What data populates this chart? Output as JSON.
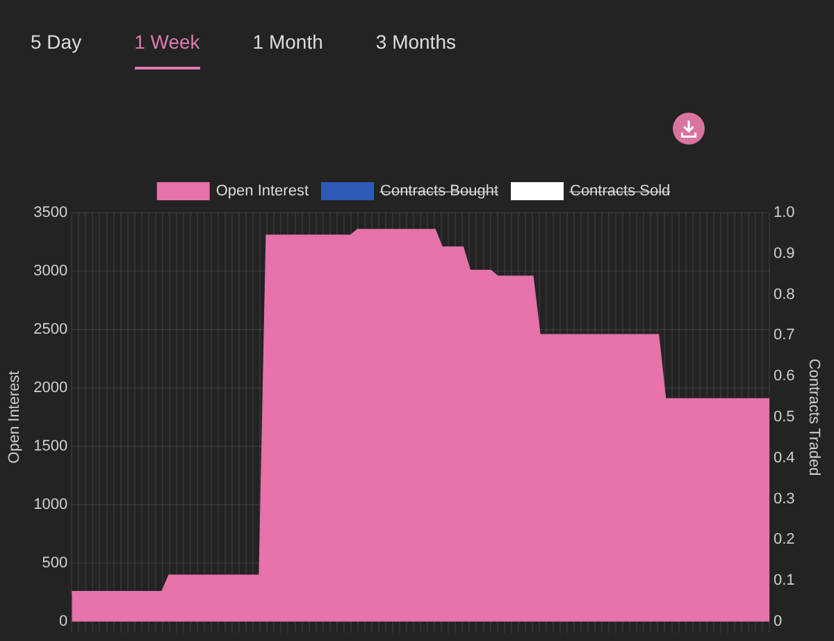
{
  "chart_data": {
    "type": "area",
    "ylabel": "Open Interest",
    "y2label": "Contracts Traded",
    "annotations": [
      "5 Day",
      "1 Week",
      "1 Month",
      "3 Months"
    ],
    "categories": [
      null,
      null,
      null,
      null,
      null,
      null,
      null,
      null,
      null,
      null,
      null,
      null,
      null,
      null,
      null,
      null,
      null,
      null,
      null,
      null,
      null,
      null,
      null,
      null,
      null,
      null,
      null,
      null,
      null,
      null,
      null,
      null,
      null,
      null,
      null,
      null,
      null,
      null,
      null,
      null,
      null,
      null,
      null,
      null,
      null,
      null,
      null,
      null,
      null,
      null,
      null,
      null,
      null,
      null,
      null,
      null,
      null,
      null,
      null,
      null,
      null,
      null,
      null,
      null,
      null,
      null,
      null,
      null,
      null,
      null,
      null,
      null,
      null,
      null,
      null,
      null,
      null,
      null,
      null,
      null,
      null,
      null,
      null,
      null,
      null,
      null,
      null,
      null,
      null,
      null,
      null,
      null,
      null,
      null,
      null,
      null,
      null,
      null,
      null,
      null,
      null
    ],
    "series": [
      {
        "name": "Open Interest",
        "color": "#e673a9",
        "values": [
          250,
          250,
          250,
          250,
          250,
          250,
          250,
          250,
          250,
          250,
          250,
          250,
          250,
          250,
          390,
          390,
          390,
          390,
          390,
          390,
          390,
          390,
          390,
          390,
          390,
          390,
          390,
          390,
          3300,
          3300,
          3300,
          3300,
          3300,
          3300,
          3300,
          3300,
          3300,
          3300,
          3300,
          3300,
          3300,
          3350,
          3350,
          3350,
          3350,
          3350,
          3350,
          3350,
          3350,
          3350,
          3350,
          3350,
          3350,
          3200,
          3200,
          3200,
          3200,
          3000,
          3000,
          3000,
          3000,
          2950,
          2950,
          2950,
          2950,
          2950,
          2950,
          2450,
          2450,
          2450,
          2450,
          2450,
          2450,
          2450,
          2450,
          2450,
          2450,
          2450,
          2450,
          2450,
          2450,
          2450,
          2450,
          2450,
          2450,
          1900,
          1900,
          1900,
          1900,
          1900,
          1900,
          1900,
          1900,
          1900,
          1900,
          1900,
          1900,
          1900,
          1900,
          1900,
          1900
        ]
      },
      {
        "name": "Contracts Bought",
        "color": "#2f5bb7",
        "values": [
          null,
          null,
          null,
          null,
          null,
          null,
          null,
          null,
          null,
          null,
          null,
          null,
          null,
          null,
          null,
          null,
          null,
          null,
          null,
          null,
          null,
          null,
          null,
          null,
          null,
          null,
          null,
          null,
          null,
          null,
          null,
          null,
          null,
          null,
          null,
          null,
          null,
          null,
          null,
          null,
          null,
          null,
          null,
          null,
          null,
          null,
          null,
          null,
          null,
          null,
          null,
          null,
          null,
          null,
          null,
          null,
          null,
          null,
          null,
          null,
          null,
          null,
          null,
          null,
          null,
          null,
          null,
          null,
          null,
          null,
          null,
          null,
          null,
          null,
          null,
          null,
          null,
          null,
          null,
          null,
          null,
          null,
          null,
          null,
          null,
          null,
          null,
          null,
          null,
          null,
          null,
          null,
          null,
          null,
          null,
          null,
          null,
          null,
          null,
          null,
          null
        ]
      },
      {
        "name": "Contracts Sold",
        "color": "#ffffff",
        "values": [
          null,
          null,
          null,
          null,
          null,
          null,
          null,
          null,
          null,
          null,
          null,
          null,
          null,
          null,
          null,
          null,
          null,
          null,
          null,
          null,
          null,
          null,
          null,
          null,
          null,
          null,
          null,
          null,
          null,
          null,
          null,
          null,
          null,
          null,
          null,
          null,
          null,
          null,
          null,
          null,
          null,
          null,
          null,
          null,
          null,
          null,
          null,
          null,
          null,
          null,
          null,
          null,
          null,
          null,
          null,
          null,
          null,
          null,
          null,
          null,
          null,
          null,
          null,
          null,
          null,
          null,
          null,
          null,
          null,
          null,
          null,
          null,
          null,
          null,
          null,
          null,
          null,
          null,
          null,
          null,
          null,
          null,
          null,
          null,
          null,
          null,
          null,
          null,
          null,
          null,
          null,
          null,
          null,
          null,
          null,
          null,
          null,
          null,
          null,
          null,
          null
        ]
      }
    ],
    "ylim": [
      0,
      3500
    ],
    "yticks": [
      0,
      500,
      1000,
      1500,
      2000,
      2500,
      3000,
      3500
    ],
    "y2lim": [
      0,
      1
    ],
    "y2ticks": [
      0,
      0.1,
      0.2,
      0.3,
      0.4,
      0.5,
      0.6,
      0.7,
      0.8,
      0.9,
      {
        "value": 1,
        "label": "1.0"
      }
    ],
    "grid": true,
    "legend": "top",
    "tick_labels": "y"
  }
}
